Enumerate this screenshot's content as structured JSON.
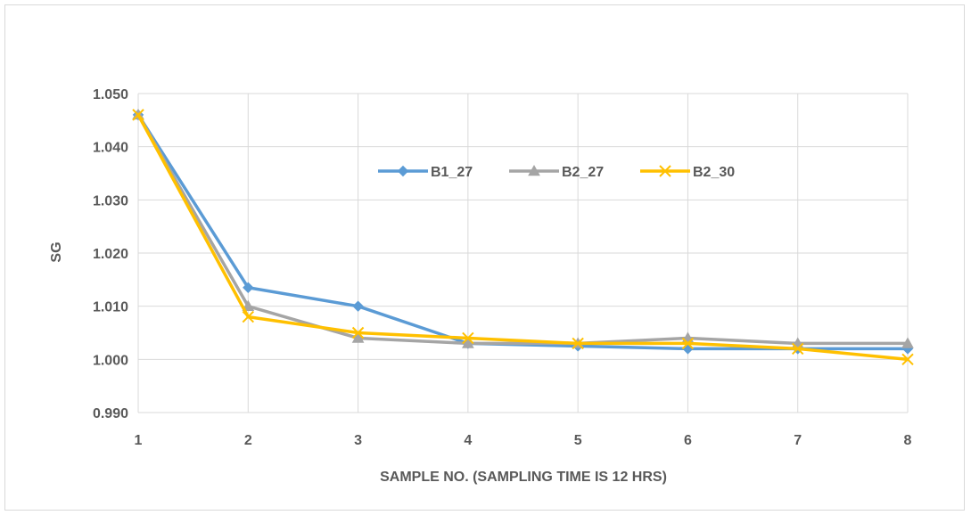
{
  "chart_data": {
    "type": "line",
    "xlabel": "SAMPLE NO. (SAMPLING TIME IS 12 HRS)",
    "ylabel": "SG",
    "x": [
      1,
      2,
      3,
      4,
      5,
      6,
      7,
      8
    ],
    "ylim": [
      0.99,
      1.05
    ],
    "yticks": [
      "0.990",
      "1.000",
      "1.010",
      "1.020",
      "1.030",
      "1.040",
      "1.050"
    ],
    "grid": true,
    "legend_position": "top-center",
    "series": [
      {
        "name": "B1_27",
        "color": "#5b9bd5",
        "marker": "diamond",
        "values": [
          1.046,
          1.0135,
          1.01,
          1.003,
          1.0025,
          1.002,
          1.002,
          1.002
        ]
      },
      {
        "name": "B2_27",
        "color": "#a5a5a5",
        "marker": "triangle",
        "values": [
          1.046,
          1.01,
          1.004,
          1.003,
          1.003,
          1.004,
          1.003,
          1.003
        ]
      },
      {
        "name": "B2_30",
        "color": "#ffc000",
        "marker": "x",
        "values": [
          1.046,
          1.008,
          1.005,
          1.004,
          1.003,
          1.003,
          1.002,
          1.0
        ]
      }
    ]
  }
}
